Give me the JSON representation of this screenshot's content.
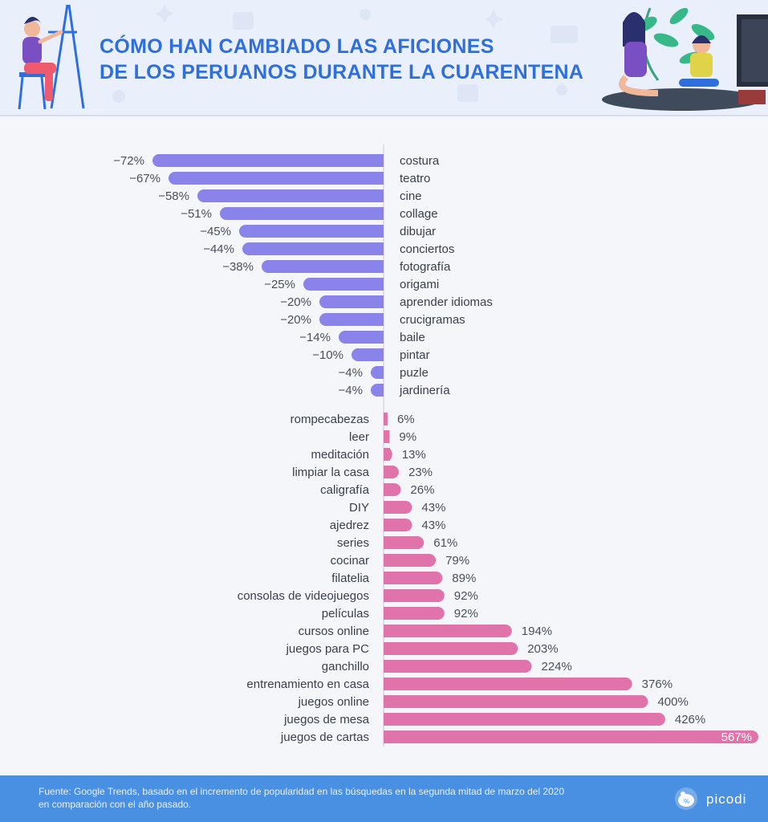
{
  "header": {
    "title_line1": "CÓMO HAN CAMBIADO LAS AFICIONES",
    "title_line2": "DE LOS PERUANOS DURANTE LA CUARENTENA"
  },
  "chart_data": {
    "type": "bar",
    "orientation": "horizontal",
    "unit": "%",
    "colors": {
      "decrease": "#8a84ea",
      "increase": "#e173ab"
    },
    "groups": [
      {
        "name": "decrease",
        "categories": [
          "costura",
          "teatro",
          "cine",
          "collage",
          "dibujar",
          "conciertos",
          "fotografía",
          "origami",
          "aprender idiomas",
          "crucigramas",
          "baile",
          "pintar",
          "puzle",
          "jardinería"
        ],
        "values": [
          -72,
          -67,
          -58,
          -51,
          -45,
          -44,
          -38,
          -25,
          -20,
          -20,
          -14,
          -10,
          -4,
          -4
        ],
        "labels": [
          "−72%",
          "−67%",
          "−58%",
          "−51%",
          "−45%",
          "−44%",
          "−38%",
          "−25%",
          "−20%",
          "−20%",
          "−14%",
          "−10%",
          "−4%",
          "−4%"
        ]
      },
      {
        "name": "increase",
        "categories": [
          "rompecabezas",
          "leer",
          "meditación",
          "limpiar la casa",
          "caligrafía",
          "DIY",
          "ajedrez",
          "series",
          "cocinar",
          "filatelia",
          "consolas de videojuegos",
          "películas",
          "cursos online",
          "juegos para PC",
          "ganchillo",
          "entrenamiento en casa",
          "juegos online",
          "juegos de mesa",
          "juegos de cartas"
        ],
        "values": [
          6,
          9,
          13,
          23,
          26,
          43,
          43,
          61,
          79,
          89,
          92,
          92,
          194,
          203,
          224,
          376,
          400,
          426,
          567
        ],
        "labels": [
          "6%",
          "9%",
          "13%",
          "23%",
          "26%",
          "43%",
          "43%",
          "61%",
          "79%",
          "89%",
          "92%",
          "92%",
          "194%",
          "203%",
          "224%",
          "376%",
          "400%",
          "426%",
          "567%"
        ]
      }
    ]
  },
  "footer": {
    "source_line1": "Fuente: Google Trends, basado en el incremento de popularidad en las búsquedas en la segunda mitad de marzo del 2020",
    "source_line2": "en comparación con el año pasado.",
    "brand": "picodi"
  }
}
